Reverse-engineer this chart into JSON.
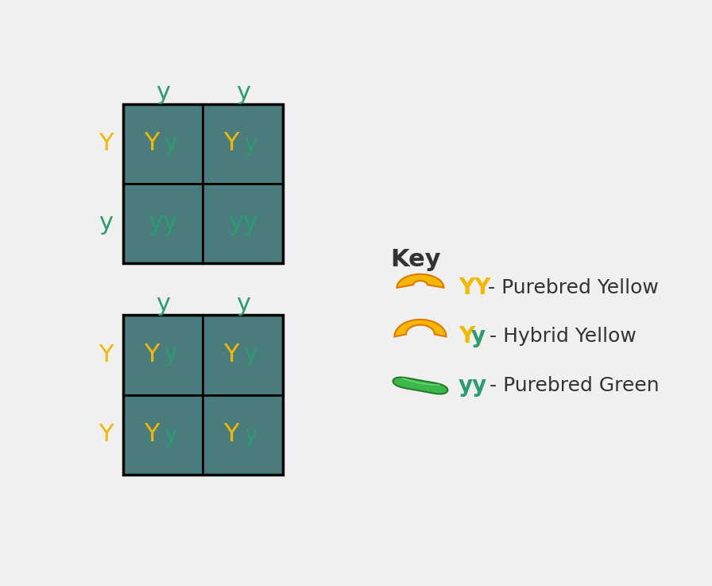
{
  "bg_color": "#f0f0f0",
  "cell_color": "#4a7c7e",
  "grid_line_color": "#1a1a1a",
  "yellow_color": "#f5b800",
  "green_color": "#2a9d6e",
  "dark_text": "#333333",
  "top_grid": {
    "col_labels": [
      "y",
      "y"
    ],
    "row_labels": [
      "Y",
      "y"
    ],
    "cells": [
      [
        "Yy",
        "Yy"
      ],
      [
        "yy",
        "yy"
      ]
    ],
    "cell_types": [
      [
        "hybrid",
        "hybrid"
      ],
      [
        "green",
        "green"
      ]
    ]
  },
  "bottom_grid": {
    "col_labels": [
      "y",
      "y"
    ],
    "row_labels": [
      "Y",
      "Y"
    ],
    "cells": [
      [
        "Yy",
        "Yy"
      ],
      [
        "Yy",
        "Yy"
      ]
    ],
    "cell_types": [
      [
        "hybrid",
        "hybrid"
      ],
      [
        "hybrid",
        "hybrid"
      ]
    ]
  },
  "key_title": "Key",
  "key_items": [
    {
      "label_Y": "YY",
      "label_color": "yellow",
      "desc": "YY - Purebred Yellow",
      "type": "small_banana"
    },
    {
      "label_Y": "Yy",
      "label_color": "hybrid",
      "desc": "Yy - Hybrid Yellow",
      "type": "big_banana"
    },
    {
      "label_Y": "yy",
      "label_color": "green",
      "desc": "yy - Purebred Green",
      "type": "pea_pod"
    }
  ]
}
